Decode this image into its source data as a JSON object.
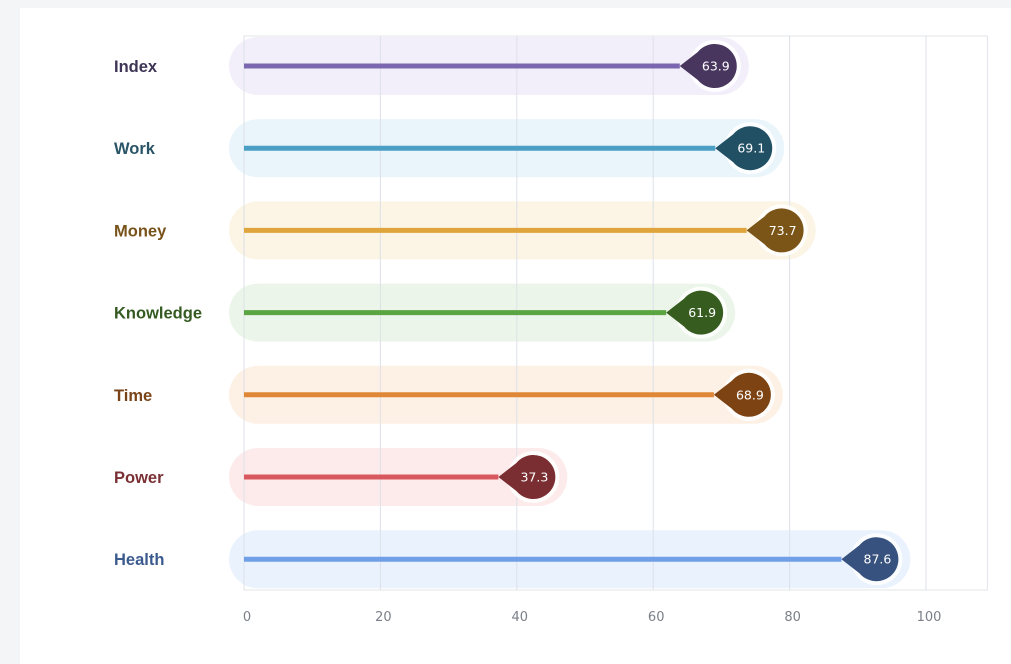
{
  "chart_data": {
    "type": "bar",
    "title": "",
    "xlabel": "",
    "ylabel": "",
    "xlim": [
      0,
      109
    ],
    "grid": true,
    "x_ticks": [
      0,
      20,
      40,
      60,
      80,
      100
    ],
    "x_tick_labels": [
      "0",
      "20",
      "40",
      "60",
      "80",
      "100"
    ],
    "categories": [
      "Index",
      "Work",
      "Money",
      "Knowledge",
      "Time",
      "Power",
      "Health"
    ],
    "values": [
      63.9,
      69.1,
      73.7,
      61.9,
      68.9,
      37.3,
      87.6
    ],
    "value_labels": [
      "63.9",
      "69.1",
      "73.7",
      "61.9",
      "68.9",
      "37.3",
      "87.6"
    ],
    "colors": {
      "line": [
        "#7b67b0",
        "#4b9fc4",
        "#e0a43c",
        "#5aa542",
        "#df8736",
        "#d9585e",
        "#6f9fe6"
      ],
      "band": [
        "#f3effa",
        "#e9f4fb",
        "#fcf4e4",
        "#ecf5e9",
        "#fdf0e5",
        "#fdebec",
        "#eaf2fe"
      ],
      "badge": [
        "#48365f",
        "#214f63",
        "#7b5417",
        "#365d1f",
        "#7d4313",
        "#7b2e31",
        "#37527f"
      ],
      "text": [
        "#3e3455",
        "#2a5566",
        "#775219",
        "#345a22",
        "#7a4418",
        "#7a3034",
        "#3b5a8e"
      ]
    }
  }
}
